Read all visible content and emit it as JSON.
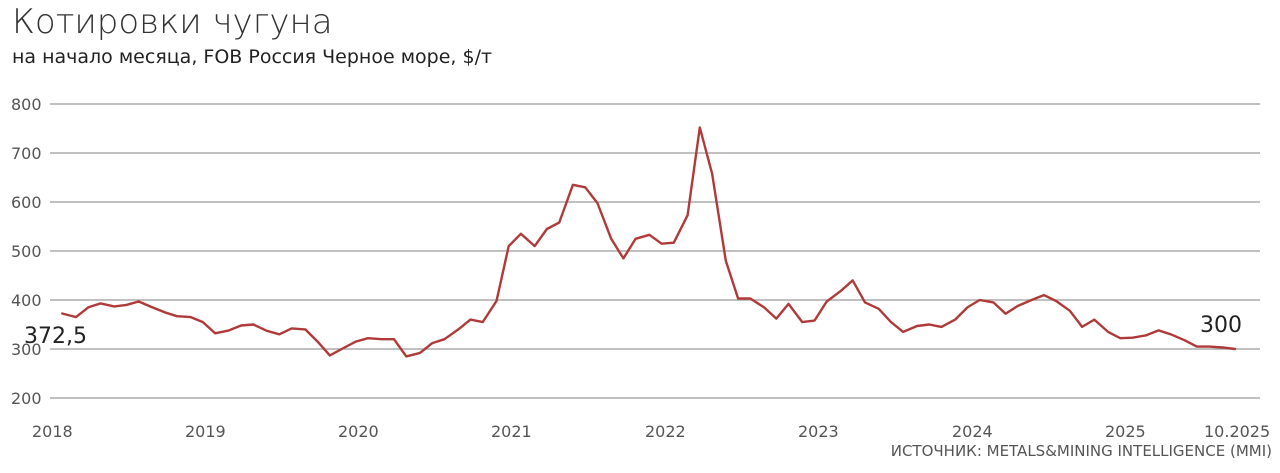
{
  "chart_data": {
    "type": "line",
    "title": "Котировки чугуна",
    "subtitle": "на начало месяца, FOB Россия Черное море, $/т",
    "source": "ИСТОЧНИК: METALS&MINING INTELLIGENCE (MMI)",
    "ylim": [
      200,
      800
    ],
    "y_ticks": [
      200,
      300,
      400,
      500,
      600,
      700,
      800
    ],
    "x_tick_labels": [
      "2018",
      "2019",
      "2020",
      "2021",
      "2022",
      "2023",
      "2024",
      "2025",
      "10.2025"
    ],
    "grid": true,
    "series_color": "#b03a3a",
    "annotations": [
      {
        "text": "372,5",
        "x": 2018.08,
        "y": 372.5
      },
      {
        "text": "300",
        "x": 2025.75,
        "y": 300
      }
    ],
    "series": [
      {
        "x": [
          2018.08,
          2018.17,
          2018.25,
          2018.33,
          2018.42,
          2018.5,
          2018.58,
          2018.67,
          2018.75,
          2018.83,
          2018.92,
          2019.0,
          2019.08,
          2019.17,
          2019.25,
          2019.33,
          2019.42,
          2019.5,
          2019.58,
          2019.67,
          2019.75,
          2019.83,
          2019.92,
          2020.0,
          2020.08,
          2020.17,
          2020.25,
          2020.33,
          2020.42,
          2020.5,
          2020.58,
          2020.67,
          2020.75,
          2020.83,
          2020.92,
          2021.0,
          2021.08,
          2021.17,
          2021.25,
          2021.33,
          2021.42,
          2021.5,
          2021.58,
          2021.67,
          2021.75,
          2021.83,
          2021.92,
          2022.0,
          2022.08,
          2022.17,
          2022.25,
          2022.33,
          2022.42,
          2022.5,
          2022.58,
          2022.67,
          2022.75,
          2022.83,
          2022.92,
          2023.0,
          2023.08,
          2023.17,
          2023.25,
          2023.33,
          2023.42,
          2023.5,
          2023.58,
          2023.67,
          2023.75,
          2023.83,
          2023.92,
          2024.0,
          2024.08,
          2024.17,
          2024.25,
          2024.33,
          2024.42,
          2024.5,
          2024.58,
          2024.67,
          2024.75,
          2024.83,
          2024.92,
          2025.0,
          2025.08,
          2025.17,
          2025.25,
          2025.33,
          2025.42,
          2025.5,
          2025.58,
          2025.67,
          2025.75
        ],
        "y": [
          372.5,
          365,
          385,
          393,
          387,
          390,
          397,
          385,
          375,
          367,
          365,
          355,
          332,
          338,
          348,
          350,
          337,
          330,
          342,
          340,
          315,
          287,
          302,
          315,
          322,
          320,
          320,
          285,
          292,
          312,
          320,
          340,
          360,
          355,
          398,
          510,
          535,
          510,
          545,
          558,
          635,
          630,
          598,
          525,
          485,
          525,
          533,
          515,
          517,
          573,
          752,
          658,
          480,
          403,
          403,
          385,
          362,
          392,
          355,
          358,
          397,
          418,
          440,
          395,
          382,
          355,
          335,
          347,
          350,
          345,
          360,
          385,
          400,
          395,
          372,
          388,
          400,
          410,
          398,
          378,
          345,
          360,
          335,
          322,
          323,
          328,
          338,
          330,
          318,
          305,
          305,
          303,
          300
        ]
      }
    ]
  }
}
